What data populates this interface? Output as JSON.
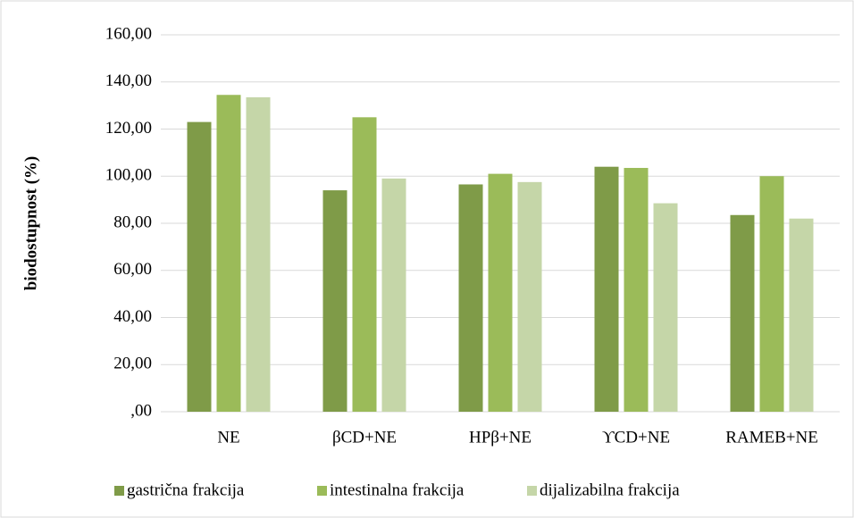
{
  "chart_data": {
    "type": "bar",
    "y_label": "biodostupnost (%)",
    "categories": [
      "NE",
      "βCD+NE",
      "HPβ+NE",
      "ϒCD+NE",
      "RAMEB+NE"
    ],
    "series": [
      {
        "name": "gastrična frakcija",
        "color": "#7f9b48",
        "values": [
          123,
          94,
          96.5,
          104,
          83.5
        ]
      },
      {
        "name": "intestinalna frakcija",
        "color": "#9bbb59",
        "values": [
          134.5,
          125,
          101,
          103.5,
          100
        ]
      },
      {
        "name": "dijalizabilna frakcija",
        "color": "#c5d6a8",
        "values": [
          133.5,
          99,
          97.5,
          88.5,
          82
        ]
      }
    ],
    "ylim": [
      0,
      160
    ],
    "yticks": [
      {
        "value": 0,
        "label": ",00"
      },
      {
        "value": 20,
        "label": "20,00"
      },
      {
        "value": 40,
        "label": "40,00"
      },
      {
        "value": 60,
        "label": "60,00"
      },
      {
        "value": 80,
        "label": "80,00"
      },
      {
        "value": 100,
        "label": "100,00"
      },
      {
        "value": 120,
        "label": "120,00"
      },
      {
        "value": 140,
        "label": "140,00"
      },
      {
        "value": 160,
        "label": "160,00"
      }
    ],
    "grid": true,
    "legend": "bottom"
  }
}
